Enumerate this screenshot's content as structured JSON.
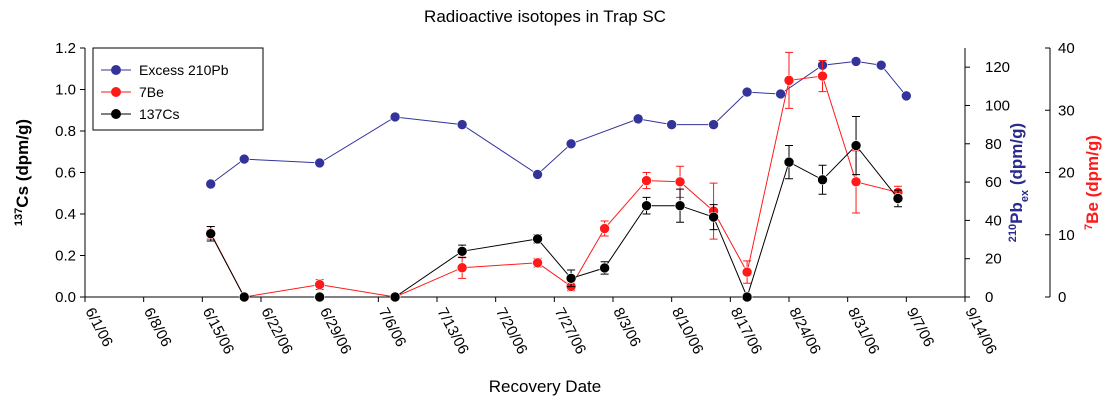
{
  "chart_data": {
    "type": "line",
    "title": "Radioactive isotopes in Trap SC",
    "xlabel": "Recovery Date",
    "ylabel": [
      {
        "text": "137",
        "script": "super"
      },
      {
        "text": "Cs (dpm/g)"
      }
    ],
    "y2label": [
      {
        "text": "210",
        "script": "super"
      },
      {
        "text": "Pb"
      },
      {
        "text": "ex",
        "script": "sub"
      },
      {
        "text": " (dpm/g)"
      }
    ],
    "y3label": [
      {
        "text": "7",
        "script": "super"
      },
      {
        "text": "Be (dpm/g)"
      }
    ],
    "xlim": [
      "6/1/06",
      "9/14/06"
    ],
    "xticks": [
      "6/1/06",
      "6/8/06",
      "6/15/06",
      "6/22/06",
      "6/29/06",
      "7/6/06",
      "7/13/06",
      "7/20/06",
      "7/27/06",
      "8/3/06",
      "8/10/06",
      "8/17/06",
      "8/24/06",
      "8/31/06",
      "9/7/06",
      "9/14/06"
    ],
    "ylim": [
      0,
      1.2
    ],
    "yticks": [
      {
        "value": 0,
        "label": "0.0"
      },
      {
        "value": 0.2,
        "label": "0.2"
      },
      {
        "value": 0.4,
        "label": "0.4"
      },
      {
        "value": 0.6,
        "label": "0.6"
      },
      {
        "value": 0.8,
        "label": "0.8"
      },
      {
        "value": 1,
        "label": "1.0"
      },
      {
        "value": 1.2,
        "label": "1.2"
      }
    ],
    "y2lim": [
      0,
      130
    ],
    "y2ticks": [
      0,
      20,
      40,
      60,
      80,
      100,
      120
    ],
    "y3lim": [
      0,
      40
    ],
    "y3ticks": [
      0,
      10,
      20,
      30,
      40
    ],
    "legend": "upper left",
    "series": [
      {
        "name": "Excess 210Pb",
        "color": "#33339a",
        "axis": "y2",
        "x": [
          "6/16/06",
          "6/20/06",
          "6/29/06",
          "7/8/06",
          "7/16/06",
          "7/25/06",
          "7/29/06",
          "8/6/06",
          "8/10/06",
          "8/15/06",
          "8/19/06",
          "8/23/06",
          "8/28/06",
          "9/1/06",
          "9/4/06",
          "9/7/06"
        ],
        "values": [
          59,
          72,
          70,
          94,
          90,
          64,
          80,
          93,
          90,
          90,
          107,
          106,
          121,
          123,
          121,
          105
        ],
        "errors": [
          1,
          1,
          1,
          1,
          1,
          1,
          1,
          1,
          1,
          1,
          1,
          1,
          1,
          1,
          1,
          1
        ]
      },
      {
        "name": "7Be",
        "color": "#ff1a1a",
        "axis": "y3",
        "x": [
          "6/16/06",
          "6/20/06",
          "6/29/06",
          "7/8/06",
          "7/16/06",
          "7/25/06",
          "7/29/06",
          "8/2/06",
          "8/7/06",
          "8/11/06",
          "8/15/06",
          "8/19/06",
          "8/24/06",
          "8/28/06",
          "9/1/06",
          "9/6/06"
        ],
        "values": [
          10.3,
          0,
          2,
          0,
          4.7,
          5.5,
          1.7,
          11,
          18.7,
          18.5,
          13.8,
          4,
          34.8,
          35.5,
          18.5,
          16.8
        ],
        "errors": [
          1,
          0,
          0.8,
          0,
          1.7,
          0.7,
          0.7,
          1.2,
          1.3,
          2.5,
          4.5,
          1.8,
          4.5,
          2.5,
          5,
          1
        ]
      },
      {
        "name": "137Cs",
        "color": "#000000",
        "axis": "y",
        "x": [
          "6/16/06",
          "6/20/06",
          "6/29/06",
          "7/8/06",
          "7/16/06",
          "7/25/06",
          "7/29/06",
          "8/2/06",
          "8/7/06",
          "8/11/06",
          "8/15/06",
          "8/19/06",
          "8/24/06",
          "8/28/06",
          "9/1/06",
          "9/6/06"
        ],
        "values": [
          0.305,
          0,
          0,
          0,
          0.22,
          0.28,
          0.09,
          0.14,
          0.44,
          0.44,
          0.385,
          0,
          0.65,
          0.565,
          0.73,
          0.475
        ],
        "errors": [
          0.035,
          0,
          0,
          0,
          0.03,
          0.02,
          0.04,
          0.03,
          0.04,
          0.08,
          0.06,
          0,
          0.08,
          0.07,
          0.14,
          0.04
        ]
      }
    ]
  }
}
